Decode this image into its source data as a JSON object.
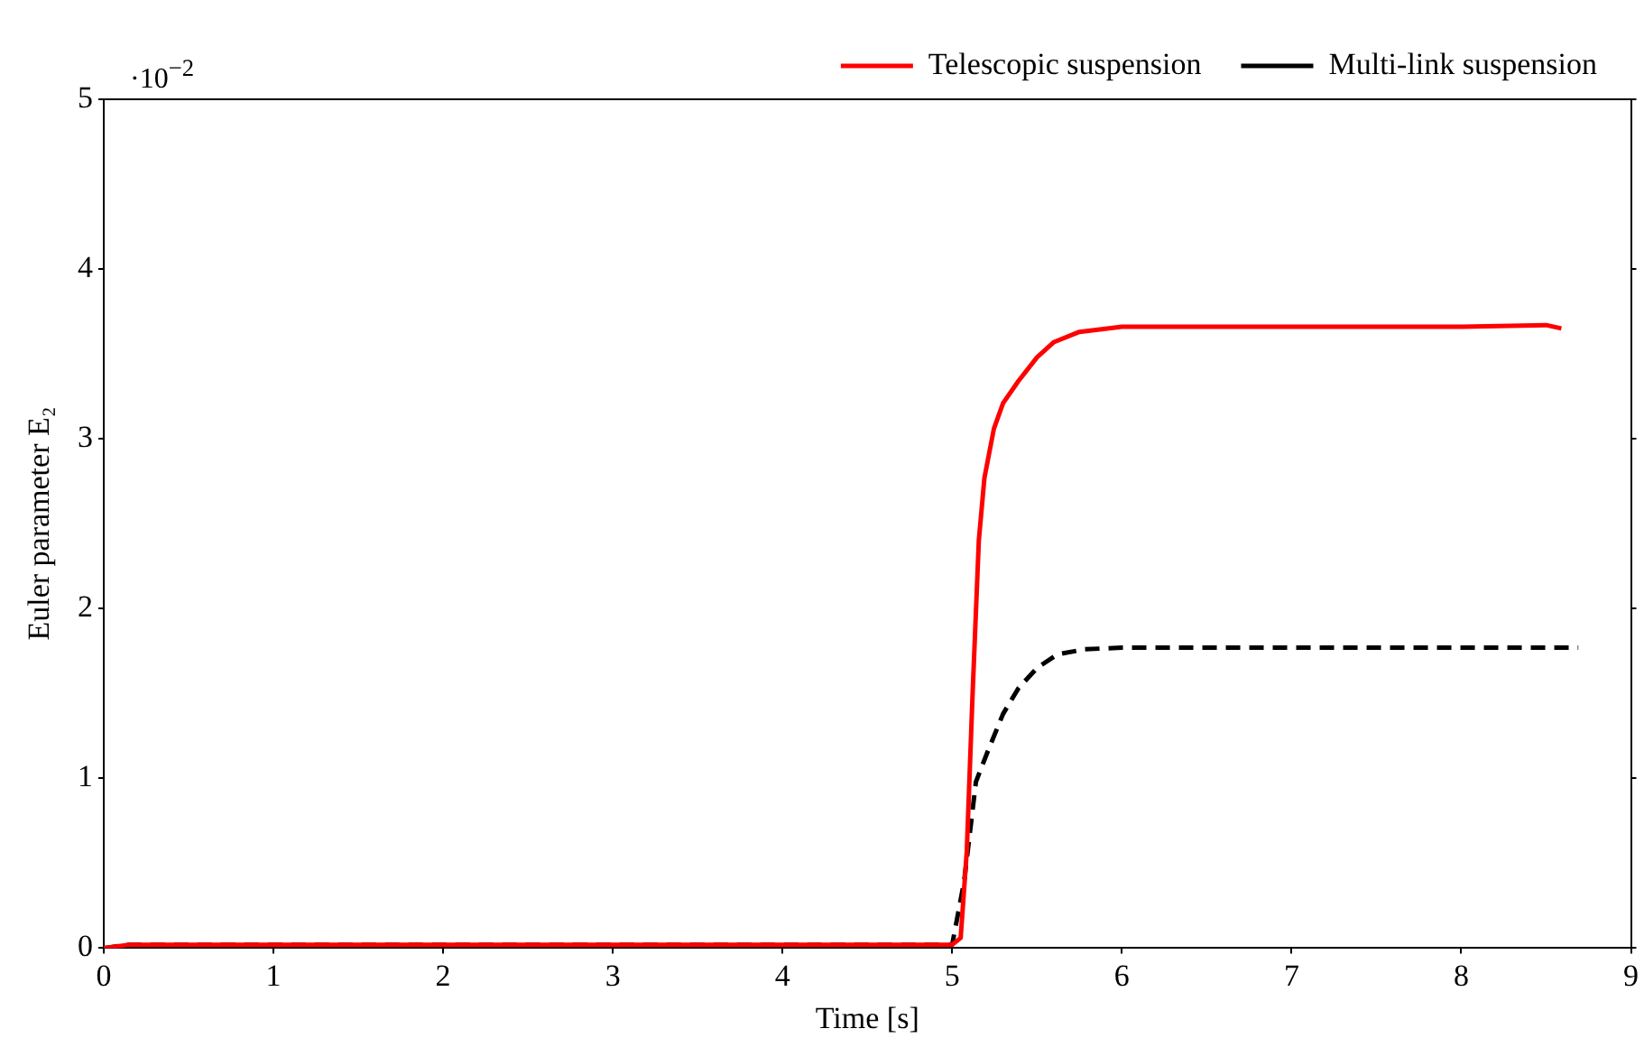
{
  "chart_data": {
    "type": "line",
    "xlabel": "Time [s]",
    "ylabel": "Euler parameter E₂",
    "annotations": [
      "·10$^{−2}$"
    ],
    "xlim": [
      0,
      9
    ],
    "xticks": [
      0,
      1,
      2,
      3,
      4,
      5,
      6,
      7,
      8,
      9
    ],
    "ylim": [
      0,
      5
    ],
    "yticks": [
      0,
      1,
      2,
      3,
      4,
      5
    ],
    "grid": false,
    "legend": "top right",
    "marker": "none",
    "series": [
      {
        "name": "Telescopic suspension",
        "color": "#ff0000",
        "line_style": "solid",
        "x": [
          0,
          0.15,
          1,
          2,
          3,
          4,
          5,
          5.05,
          5.086,
          5.12,
          5.157,
          5.19,
          5.246,
          5.3,
          5.39,
          5.5,
          5.6,
          5.75,
          6,
          7,
          8,
          8.5,
          8.59
        ],
        "values": [
          0,
          0.02,
          0.02,
          0.02,
          0.02,
          0.02,
          0.02,
          0.06,
          0.57,
          1.49,
          2.4,
          2.77,
          3.06,
          3.21,
          3.34,
          3.48,
          3.57,
          3.63,
          3.66,
          3.66,
          3.66,
          3.67,
          3.65
        ]
      },
      {
        "name": "Multi-link suspension",
        "color": "#000000",
        "line_style": "dashed",
        "x": [
          0,
          0.15,
          1,
          2,
          3,
          4,
          5,
          5.07,
          5.14,
          5.21,
          5.3,
          5.39,
          5.5,
          5.62,
          5.78,
          6,
          7,
          8,
          8.69
        ],
        "values": [
          0,
          0.02,
          0.02,
          0.02,
          0.02,
          0.02,
          0.02,
          0.39,
          0.98,
          1.16,
          1.38,
          1.53,
          1.65,
          1.73,
          1.76,
          1.77,
          1.77,
          1.77,
          1.77
        ]
      }
    ]
  }
}
